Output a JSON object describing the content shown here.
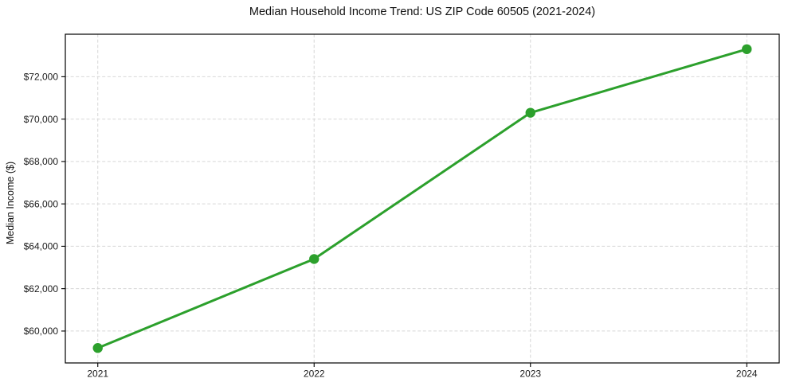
{
  "figure": {
    "background": "#ffffff"
  },
  "chart_data": {
    "type": "line",
    "title": "Median Household Income Trend: US ZIP Code 60505 (2021-2024)",
    "xlabel": "",
    "ylabel": "Median Income ($)",
    "categories": [
      "2021",
      "2022",
      "2023",
      "2024"
    ],
    "x": [
      2021,
      2022,
      2023,
      2024
    ],
    "series": [
      {
        "name": "Median Household Income",
        "values": [
          59200,
          63400,
          70300,
          73300
        ]
      }
    ],
    "ytick_values": [
      60000,
      62000,
      64000,
      66000,
      68000,
      70000,
      72000
    ],
    "ytick_labels": [
      "$60,000",
      "$62,000",
      "$64,000",
      "$66,000",
      "$68,000",
      "$70,000",
      "$72,000"
    ],
    "ylim": [
      58495,
      74005
    ],
    "xlim": [
      2020.85,
      2024.15
    ],
    "grid": true,
    "grid_style": "dashed",
    "legend": "none",
    "marker": "circle",
    "colors": {
      "line": "#2ca02c",
      "grid": "#d7d7d7",
      "spine": "#000000",
      "text": "#1a1a1a",
      "background": "#ffffff"
    }
  }
}
